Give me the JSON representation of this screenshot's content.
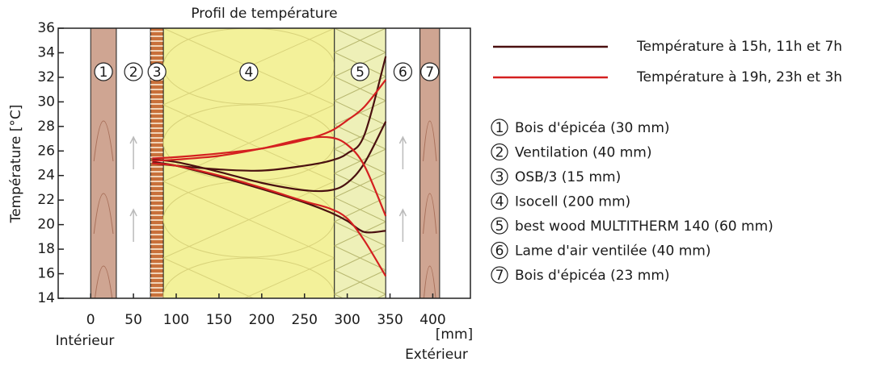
{
  "chart_data": {
    "type": "line",
    "title": "Profil de température",
    "ylabel": "Température [°C]",
    "xunit": "[mm]",
    "inside_label": "Intérieur",
    "outside_label": "Extérieur",
    "xlim": [
      -38,
      444
    ],
    "xticks": [
      0,
      50,
      100,
      150,
      200,
      250,
      300,
      350,
      400
    ],
    "ylim": [
      14,
      36
    ],
    "yticks": [
      14,
      16,
      18,
      20,
      22,
      24,
      26,
      28,
      30,
      32,
      34,
      36
    ],
    "x": [
      72,
      100,
      150,
      200,
      250,
      280,
      300,
      320,
      345
    ],
    "series": [
      {
        "name": "Température à 15h, 11h et 7h",
        "color": "#4a1010",
        "lines": [
          {
            "values": [
              25.3,
              25.1,
              24.3,
              23.4,
              22.8,
              22.8,
              23.4,
              25,
              28.4
            ]
          },
          {
            "values": [
              25.0,
              24.8,
              24.5,
              24.4,
              24.8,
              25.2,
              25.8,
              27.3,
              33.7
            ]
          },
          {
            "values": [
              25.1,
              24.8,
              23.9,
              22.9,
              21.8,
              21.0,
              20.3,
              19.4,
              19.5
            ]
          }
        ]
      },
      {
        "name": "Température à 19h, 23h et 3h",
        "color": "#d42020",
        "lines": [
          {
            "values": [
              25.4,
              25.5,
              25.8,
              26.2,
              26.9,
              27.6,
              28.5,
              29.6,
              31.8
            ]
          },
          {
            "values": [
              25.2,
              25.3,
              25.6,
              26.2,
              27.0,
              27.1,
              26.5,
              24.8,
              20.7
            ]
          },
          {
            "values": [
              25.0,
              24.8,
              24.0,
              23.0,
              21.9,
              21.3,
              20.5,
              18.7,
              15.8
            ]
          }
        ]
      }
    ],
    "layers": [
      {
        "number": "1",
        "label": "Bois d'épicéa (30 mm)",
        "start": 0,
        "end": 30,
        "color": "#cfa592"
      },
      {
        "number": "2",
        "label": "Ventilation (40 mm)",
        "start": 30,
        "end": 70,
        "color": "#ffffff"
      },
      {
        "number": "3",
        "label": "OSB/3 (15 mm)",
        "start": 70,
        "end": 85,
        "color": "#c8703a"
      },
      {
        "number": "4",
        "label": "Isocell (200 mm)",
        "start": 85,
        "end": 285,
        "color": "#f3f19a"
      },
      {
        "number": "5",
        "label": "best wood MULTITHERM 140 (60 mm)",
        "start": 285,
        "end": 345,
        "color": "#eef0b8"
      },
      {
        "number": "6",
        "label": "Lame d'air ventilée (40 mm)",
        "start": 345,
        "end": 385,
        "color": "#ffffff"
      },
      {
        "number": "7",
        "label": "Bois d'épicéa (23 mm)",
        "start": 385,
        "end": 408,
        "color": "#cfa592"
      }
    ]
  }
}
